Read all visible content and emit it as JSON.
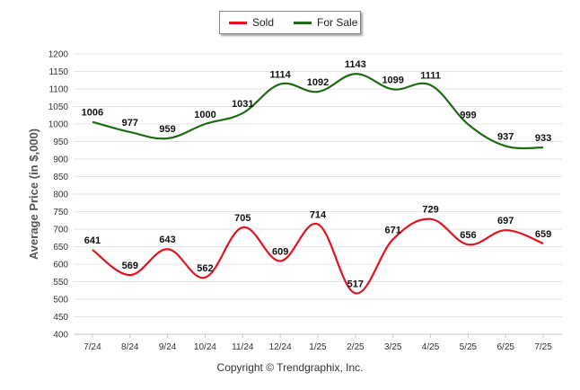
{
  "chart_data": {
    "type": "line",
    "ylabel": "Average Price (in $,000)",
    "xlabel": "",
    "ylim": [
      400,
      1200
    ],
    "ytick_step": 50,
    "categories": [
      "7/24",
      "8/24",
      "9/24",
      "10/24",
      "11/24",
      "12/24",
      "1/25",
      "2/25",
      "3/25",
      "4/25",
      "5/25",
      "6/25",
      "7/25"
    ],
    "grid": true,
    "legend_position": "top-center",
    "series": [
      {
        "name": "Sold",
        "color": "#e0141e",
        "values": [
          641,
          569,
          643,
          562,
          705,
          609,
          714,
          517,
          671,
          729,
          656,
          697,
          659
        ]
      },
      {
        "name": "For Sale",
        "color": "#1e6b12",
        "values": [
          1006,
          977,
          959,
          1000,
          1031,
          1114,
          1092,
          1143,
          1099,
          1111,
          999,
          937,
          933
        ]
      }
    ]
  },
  "legend": {
    "sold_label": "Sold",
    "forsale_label": "For Sale"
  },
  "footer": {
    "credit": "Copyright © Trendgraphix, Inc."
  }
}
